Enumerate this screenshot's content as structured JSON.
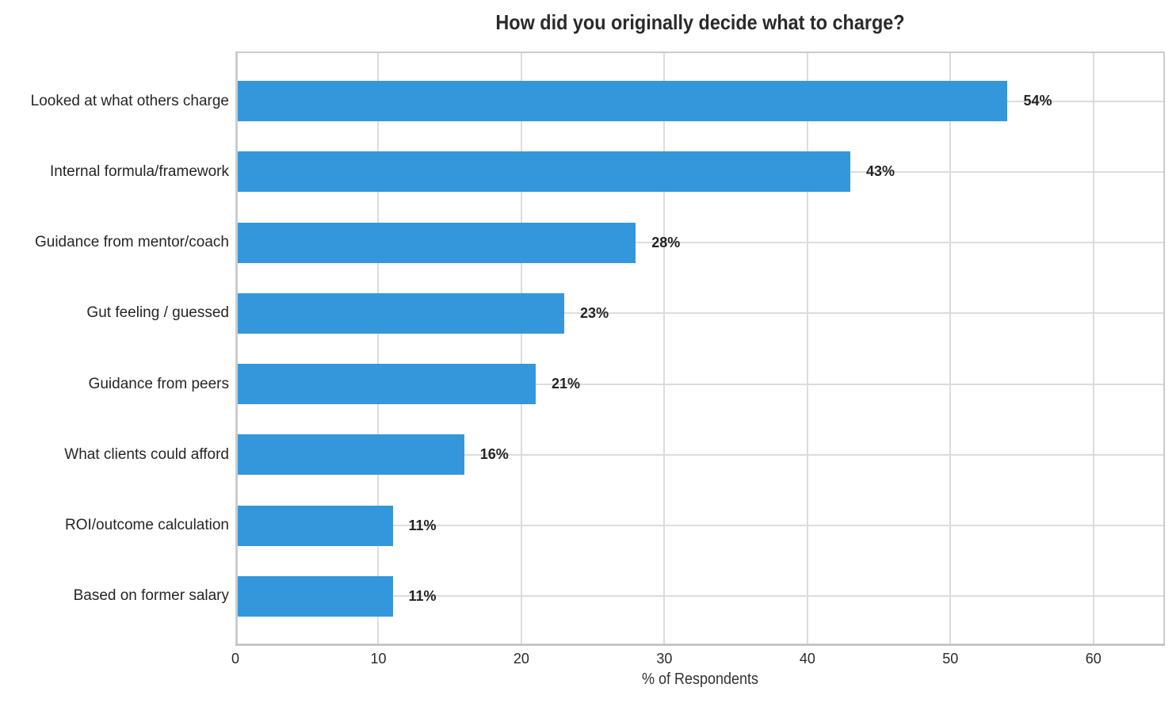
{
  "chart_data": {
    "type": "bar",
    "orientation": "horizontal",
    "title": "How did you originally decide what to charge?",
    "xlabel": "% of Respondents",
    "ylabel": "",
    "categories": [
      "Looked at what others charge",
      "Internal formula/framework",
      "Guidance from mentor/coach",
      "Gut feeling / guessed",
      "Guidance from peers",
      "What clients could afford",
      "ROI/outcome calculation",
      "Based on former salary"
    ],
    "values": [
      54,
      43,
      28,
      23,
      21,
      16,
      11,
      11
    ],
    "value_labels": [
      "54%",
      "43%",
      "28%",
      "23%",
      "21%",
      "16%",
      "11%",
      "11%"
    ],
    "x_ticks": [
      "0",
      "10",
      "20",
      "30",
      "40",
      "50",
      "60"
    ],
    "x_tick_values": [
      0,
      10,
      20,
      30,
      40,
      50,
      60
    ],
    "xlim": [
      0,
      65
    ],
    "grid": true,
    "legend": "none",
    "colors": {
      "bar": "#3597db",
      "grid": "#dcdcdc",
      "spine": "#cccccc",
      "title_text": "#2a2a2a",
      "label_text": "#262626",
      "value_text": "#242424",
      "background": "#ffffff"
    }
  }
}
